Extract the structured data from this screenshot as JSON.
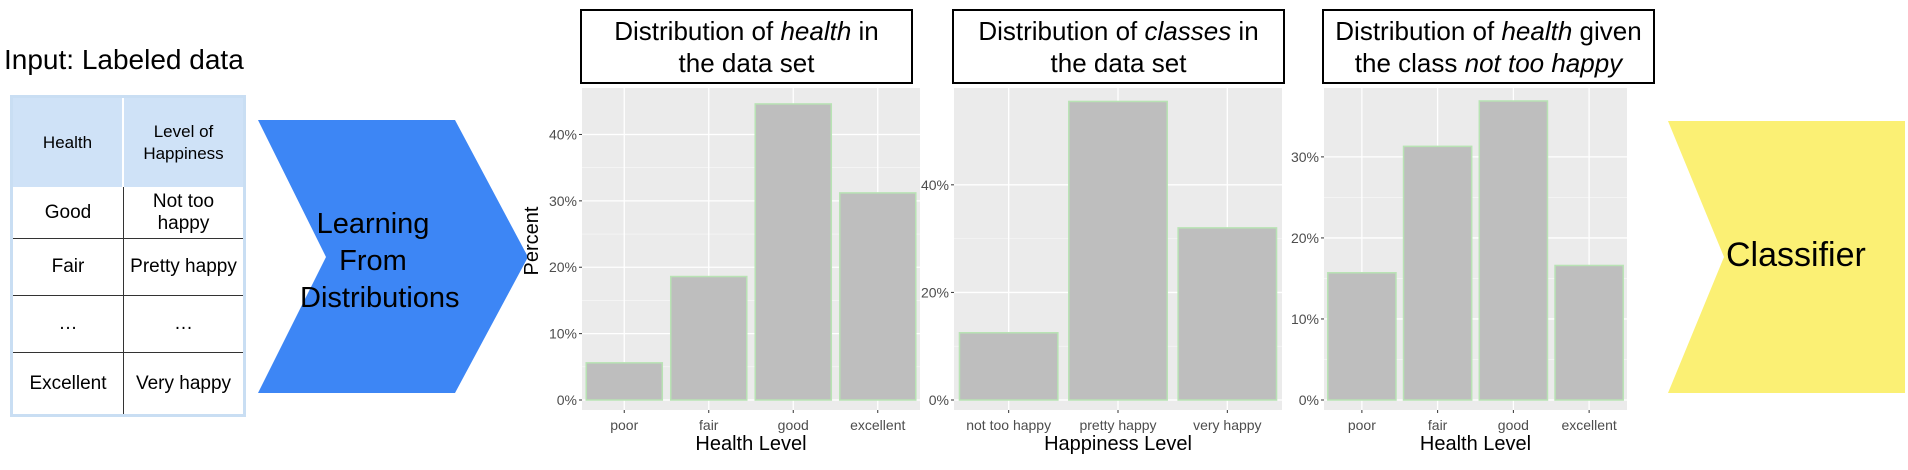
{
  "input_section": {
    "title": "Input: Labeled data",
    "table": {
      "headers": [
        "Health",
        "Level of Happiness"
      ],
      "rows": [
        [
          "Good",
          "Not too happy"
        ],
        [
          "Fair",
          "Pretty happy"
        ],
        [
          "…",
          "…"
        ],
        [
          "Excellent",
          "Very happy"
        ]
      ]
    }
  },
  "process": {
    "label_lines": [
      "Learning",
      "From",
      "Distributions"
    ],
    "arrow_color": "#3d86f5"
  },
  "output": {
    "label": "Classifier",
    "arrow_color": "#fbf074"
  },
  "style": {
    "bar_fill": "#bebebe",
    "bar_stroke": "#b8e3b4",
    "panel_bg": "#ebebeb",
    "grid_color": "#ffffff"
  },
  "chart_data": [
    {
      "type": "bar",
      "title": "Distribution of health in the data set",
      "title_lines": [
        [
          {
            "t": "Distribution of "
          },
          {
            "t": "health",
            "i": true
          },
          {
            "t": " in"
          }
        ],
        [
          {
            "t": "the data set"
          }
        ]
      ],
      "categories": [
        "poor",
        "fair",
        "good",
        "excellent"
      ],
      "values": [
        5.6,
        18.6,
        44.6,
        31.2
      ],
      "ylabel": "Percent",
      "xlabel": "Health Level",
      "yticks": [
        0,
        10,
        20,
        30,
        40
      ],
      "ytick_labels": [
        "0%",
        "10%",
        "20%",
        "30%",
        "40%"
      ],
      "ylim": [
        0,
        47
      ],
      "grid": true
    },
    {
      "type": "bar",
      "title": "Distribution of classes in the data set",
      "title_lines": [
        [
          {
            "t": "Distribution of "
          },
          {
            "t": "classes",
            "i": true
          },
          {
            "t": " in"
          }
        ],
        [
          {
            "t": "the data set"
          }
        ]
      ],
      "categories": [
        "not too happy",
        "pretty happy",
        "very happy"
      ],
      "values": [
        12.5,
        55.5,
        32.0
      ],
      "ylabel": "",
      "xlabel": "Happiness Level",
      "yticks": [
        0,
        20,
        40
      ],
      "ytick_labels": [
        "0%",
        "20%",
        "40%"
      ],
      "ylim": [
        0,
        58
      ],
      "grid": true
    },
    {
      "type": "bar",
      "title": "Distribution of health given the class not too happy",
      "title_lines": [
        [
          {
            "t": "Distribution of "
          },
          {
            "t": "health",
            "i": true
          },
          {
            "t": " given"
          }
        ],
        [
          {
            "t": "the class "
          },
          {
            "t": "not too happy",
            "i": true
          }
        ]
      ],
      "categories": [
        "poor",
        "fair",
        "good",
        "excellent"
      ],
      "values": [
        15.7,
        31.3,
        36.9,
        16.6
      ],
      "ylabel": "",
      "xlabel": "Health Level",
      "yticks": [
        0,
        10,
        20,
        30
      ],
      "ytick_labels": [
        "0%",
        "10%",
        "20%",
        "30%"
      ],
      "ylim": [
        0,
        38.5
      ],
      "grid": true
    }
  ]
}
